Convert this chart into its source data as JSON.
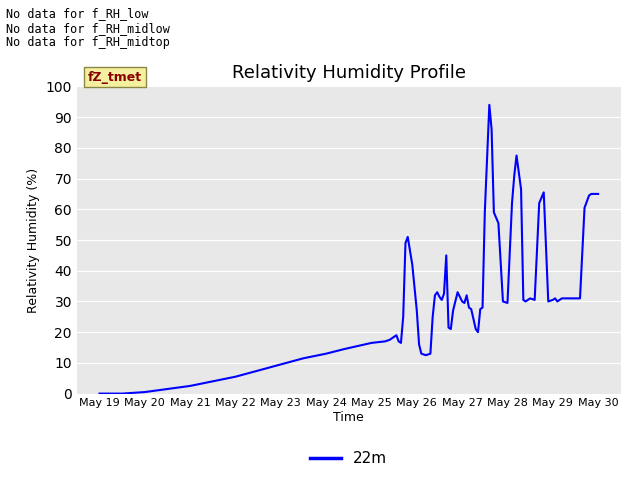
{
  "title": "Relativity Humidity Profile",
  "ylabel": "Relativity Humidity (%)",
  "xlabel": "Time",
  "legend_label": "22m",
  "line_color": "blue",
  "bg_color": "#e8e8e8",
  "ylim": [
    0,
    100
  ],
  "yticks": [
    0,
    10,
    20,
    30,
    40,
    50,
    60,
    70,
    80,
    90,
    100
  ],
  "annotations_topleft": [
    "No data for f_RH_low",
    "No data for f̅R̅H̅_̅midlow",
    "No data for f̅R̅H̅_̅midtop"
  ],
  "annotations_plain": [
    "No data for f_RH_low",
    "No data for f_RH_midlow",
    "No data for f_RH_midtop"
  ],
  "legend_box_text": "fZ_tmet",
  "x_tick_labels": [
    "May 19",
    "May 20",
    "May 21",
    "May 22",
    "May 23",
    "May 24",
    "May 25",
    "May 26",
    "May 27",
    "May 28",
    "May 29",
    "May 30"
  ],
  "data_x_days_from_may19": [
    0.0,
    0.5,
    1.0,
    1.5,
    2.0,
    2.5,
    3.0,
    3.5,
    4.0,
    4.5,
    5.0,
    5.4,
    5.7,
    6.0,
    6.3,
    6.4,
    6.5,
    6.55,
    6.6,
    6.65,
    6.7,
    6.75,
    6.8,
    6.9,
    7.0,
    7.05,
    7.1,
    7.2,
    7.3,
    7.35,
    7.4,
    7.45,
    7.5,
    7.55,
    7.6,
    7.65,
    7.7,
    7.75,
    7.8,
    7.85,
    7.9,
    8.0,
    8.05,
    8.1,
    8.15,
    8.2,
    8.3,
    8.35,
    8.4,
    8.45,
    8.5,
    8.6,
    8.65,
    8.7,
    8.8,
    8.9,
    9.0,
    9.1,
    9.15,
    9.2,
    9.3,
    9.35,
    9.4,
    9.5,
    9.6,
    9.7,
    9.8,
    9.9,
    10.0,
    10.05,
    10.1,
    10.15,
    10.2,
    10.3,
    10.6,
    10.7,
    10.8,
    10.85,
    10.9,
    11.0
  ],
  "data_y": [
    0.0,
    0.0,
    0.5,
    1.5,
    2.5,
    4.0,
    5.5,
    7.5,
    9.5,
    11.5,
    13.0,
    14.5,
    15.5,
    16.5,
    17.0,
    17.5,
    18.5,
    19.0,
    17.0,
    16.5,
    25.0,
    49.0,
    51.0,
    42.0,
    27.0,
    16.0,
    13.0,
    12.5,
    13.0,
    25.0,
    32.0,
    33.0,
    31.5,
    30.5,
    32.5,
    45.0,
    21.5,
    21.0,
    27.0,
    30.0,
    33.0,
    30.0,
    29.5,
    32.0,
    28.0,
    27.5,
    21.0,
    20.0,
    27.5,
    28.0,
    59.0,
    94.0,
    86.0,
    59.0,
    55.5,
    30.0,
    29.5,
    62.0,
    71.0,
    77.5,
    66.5,
    30.5,
    30.0,
    31.0,
    30.5,
    62.0,
    65.5,
    30.0,
    30.5,
    31.0,
    30.0,
    30.5,
    31.0,
    31.0,
    31.0,
    60.5,
    64.5,
    65.0,
    65.0,
    65.0
  ]
}
